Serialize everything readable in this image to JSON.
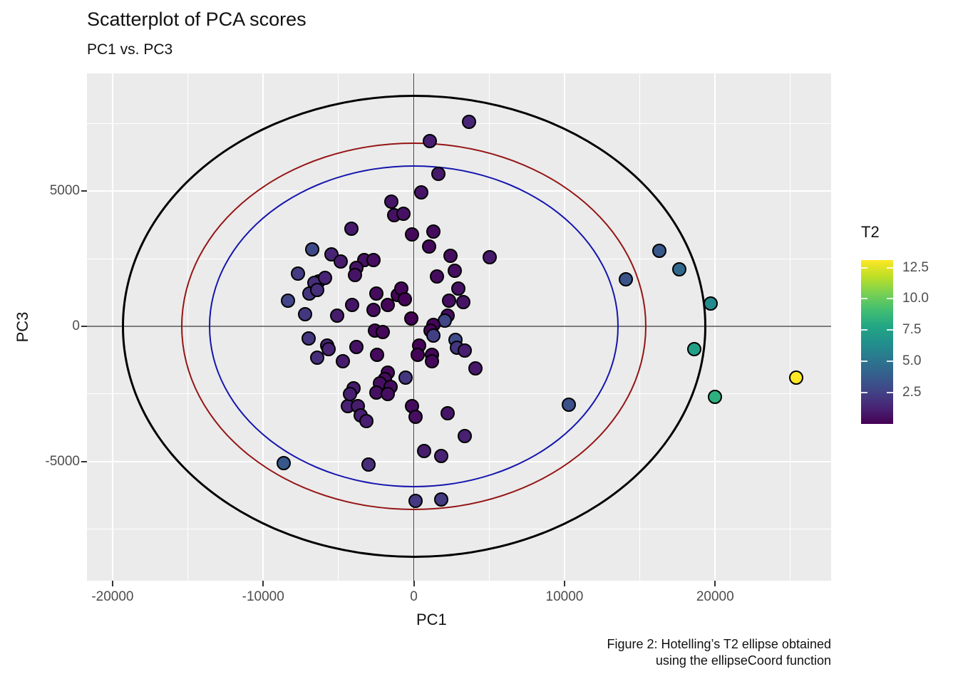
{
  "title": "Scatterplot of PCA scores",
  "subtitle": "PC1 vs. PC3",
  "caption": {
    "line1": "Figure 2: Hotelling’s T2 ellipse obtained",
    "line2": "using the ellipseCoord function"
  },
  "legend": {
    "title": "T2",
    "ticks": [
      2.5,
      5.0,
      7.5,
      10.0,
      12.5
    ],
    "tick_labels": [
      "2.5",
      "5.0",
      "7.5",
      "10.0",
      "12.5"
    ],
    "domain": [
      0,
      13.1
    ],
    "colormap": [
      "#440154",
      "#482475",
      "#414487",
      "#355f8d",
      "#2a788e",
      "#21918c",
      "#22a884",
      "#44bf70",
      "#7ad151",
      "#bddf26",
      "#fde725"
    ]
  },
  "colors": {
    "panel_bg": "#ebebeb",
    "grid": "#ffffff",
    "axis_text": "#4d4d4d",
    "hline": "#7c7c7c",
    "vline": "#3c3c3c",
    "point_stroke": "#000000"
  },
  "chart_data": {
    "type": "scatter",
    "title": "Scatterplot of PCA scores",
    "subtitle": "PC1 vs. PC3",
    "xlabel": "PC1",
    "ylabel": "PC3",
    "xlim": [
      -21700,
      27700
    ],
    "ylim": [
      -9400,
      9350
    ],
    "x_major_ticks": [
      -20000,
      -10000,
      0,
      10000,
      20000
    ],
    "x_tick_labels": [
      "-20000",
      "-10000",
      "0",
      "10000",
      "20000"
    ],
    "x_minor_ticks": [
      -15000,
      -5000,
      5000,
      15000,
      25000
    ],
    "y_major_ticks": [
      5000,
      0,
      -5000
    ],
    "y_tick_labels": [
      "5000",
      "0",
      "-5000"
    ],
    "y_minor_ticks": [
      7500,
      2500,
      -2500,
      -7500
    ],
    "grid": true,
    "legend_position": "right",
    "reference_lines": {
      "vline_x": 0,
      "hline_y": 0
    },
    "ellipses": [
      {
        "name": "outer-ellipse",
        "cx": 0,
        "cy": 0,
        "rx": 19400,
        "ry": 8550,
        "color": "#000000",
        "stroke": 3
      },
      {
        "name": "middle-ellipse",
        "cx": 0,
        "cy": 0,
        "rx": 15450,
        "ry": 6800,
        "color": "#951414",
        "stroke": 2.5
      },
      {
        "name": "inner-ellipse",
        "cx": 0,
        "cy": 0,
        "rx": 13600,
        "ry": 5950,
        "color": "#1515ae",
        "stroke": 2.5
      }
    ],
    "point_format": [
      "PC1",
      "PC3",
      "T2"
    ],
    "points": [
      [
        3650,
        7550,
        1.4
      ],
      [
        1050,
        6850,
        1.1
      ],
      [
        1650,
        5650,
        0.9
      ],
      [
        500,
        4950,
        0.7
      ],
      [
        -1500,
        4600,
        0.7
      ],
      [
        -1300,
        4100,
        0.6
      ],
      [
        -700,
        4150,
        0.6
      ],
      [
        -4150,
        3600,
        0.9
      ],
      [
        -100,
        3400,
        0.3
      ],
      [
        1300,
        3500,
        0.4
      ],
      [
        1000,
        2950,
        0.3
      ],
      [
        -6750,
        2850,
        2.9
      ],
      [
        -5450,
        2650,
        1.3
      ],
      [
        -4850,
        2400,
        1.0
      ],
      [
        2450,
        2600,
        0.5
      ],
      [
        2700,
        2050,
        0.5
      ],
      [
        5050,
        2550,
        0.9
      ],
      [
        -3300,
        2450,
        0.6
      ],
      [
        -2700,
        2450,
        0.5
      ],
      [
        -3800,
        2150,
        0.7
      ],
      [
        -7700,
        1950,
        2.3
      ],
      [
        -6300,
        1650,
        1.6
      ],
      [
        -6600,
        1600,
        1.7
      ],
      [
        -5900,
        1800,
        1.3
      ],
      [
        -3900,
        1900,
        0.7
      ],
      [
        -8350,
        950,
        2.7
      ],
      [
        -6950,
        1200,
        2.0
      ],
      [
        -6400,
        1350,
        1.7
      ],
      [
        -7200,
        450,
        2.1
      ],
      [
        -5100,
        400,
        1.0
      ],
      [
        -4100,
        800,
        0.7
      ],
      [
        -2500,
        1200,
        0.4
      ],
      [
        -2700,
        600,
        0.4
      ],
      [
        -1750,
        800,
        0.2
      ],
      [
        -1050,
        1150,
        0.2
      ],
      [
        -850,
        1400,
        0.2
      ],
      [
        -600,
        1000,
        0.15
      ],
      [
        -150,
        300,
        0.05
      ],
      [
        -2600,
        -150,
        0.3
      ],
      [
        -2050,
        -200,
        0.25
      ],
      [
        1550,
        1850,
        0.4
      ],
      [
        2950,
        1400,
        0.6
      ],
      [
        2350,
        950,
        0.5
      ],
      [
        3300,
        900,
        0.7
      ],
      [
        2250,
        400,
        0.4
      ],
      [
        2050,
        200,
        2.7
      ],
      [
        1300,
        50,
        0.15
      ],
      [
        1100,
        -150,
        0.15
      ],
      [
        1300,
        -350,
        2.4
      ],
      [
        2750,
        -500,
        3.0
      ],
      [
        2850,
        -800,
        2.0
      ],
      [
        3400,
        -900,
        1.1
      ],
      [
        1200,
        -1050,
        0.2
      ],
      [
        1200,
        -1300,
        0.25
      ],
      [
        4100,
        -1550,
        0.9
      ],
      [
        330,
        -700,
        0.1
      ],
      [
        250,
        -1050,
        0.15
      ],
      [
        -7000,
        -450,
        2.0
      ],
      [
        -5750,
        -700,
        1.3
      ],
      [
        -5650,
        -850,
        1.25
      ],
      [
        -6400,
        -1150,
        1.7
      ],
      [
        -4700,
        -1300,
        1.0
      ],
      [
        -3800,
        -750,
        0.65
      ],
      [
        -2450,
        -1050,
        0.35
      ],
      [
        -1750,
        -1700,
        0.3
      ],
      [
        -550,
        -1900,
        2.1
      ],
      [
        -1900,
        -1950,
        0.4
      ],
      [
        -2250,
        -2100,
        0.5
      ],
      [
        -1550,
        -2250,
        0.4
      ],
      [
        -4000,
        -2300,
        0.9
      ],
      [
        -2500,
        -2450,
        0.55
      ],
      [
        -1750,
        -2500,
        0.5
      ],
      [
        -4400,
        -2950,
        1.2
      ],
      [
        -3700,
        -2950,
        1.0
      ],
      [
        -3550,
        -3300,
        1.1
      ],
      [
        -3150,
        -3500,
        1.1
      ],
      [
        -4250,
        -2500,
        1.1
      ],
      [
        -100,
        -2950,
        0.4
      ],
      [
        100,
        -3350,
        0.5
      ],
      [
        2250,
        -3200,
        0.75
      ],
      [
        -3000,
        -5100,
        1.7
      ],
      [
        700,
        -4600,
        1.0
      ],
      [
        1800,
        -4800,
        1.25
      ],
      [
        3400,
        -4050,
        1.2
      ],
      [
        100,
        -6450,
        2.2
      ],
      [
        1800,
        -6400,
        2.2
      ],
      [
        -8650,
        -5050,
        3.6
      ],
      [
        10300,
        -2900,
        3.2
      ],
      [
        14050,
        1750,
        3.4
      ],
      [
        16300,
        2800,
        3.6
      ],
      [
        17600,
        2100,
        4.4
      ],
      [
        19700,
        850,
        6.2
      ],
      [
        18600,
        -850,
        7.4
      ],
      [
        20000,
        -2600,
        8.3
      ],
      [
        25400,
        -1900,
        13.1
      ]
    ]
  }
}
